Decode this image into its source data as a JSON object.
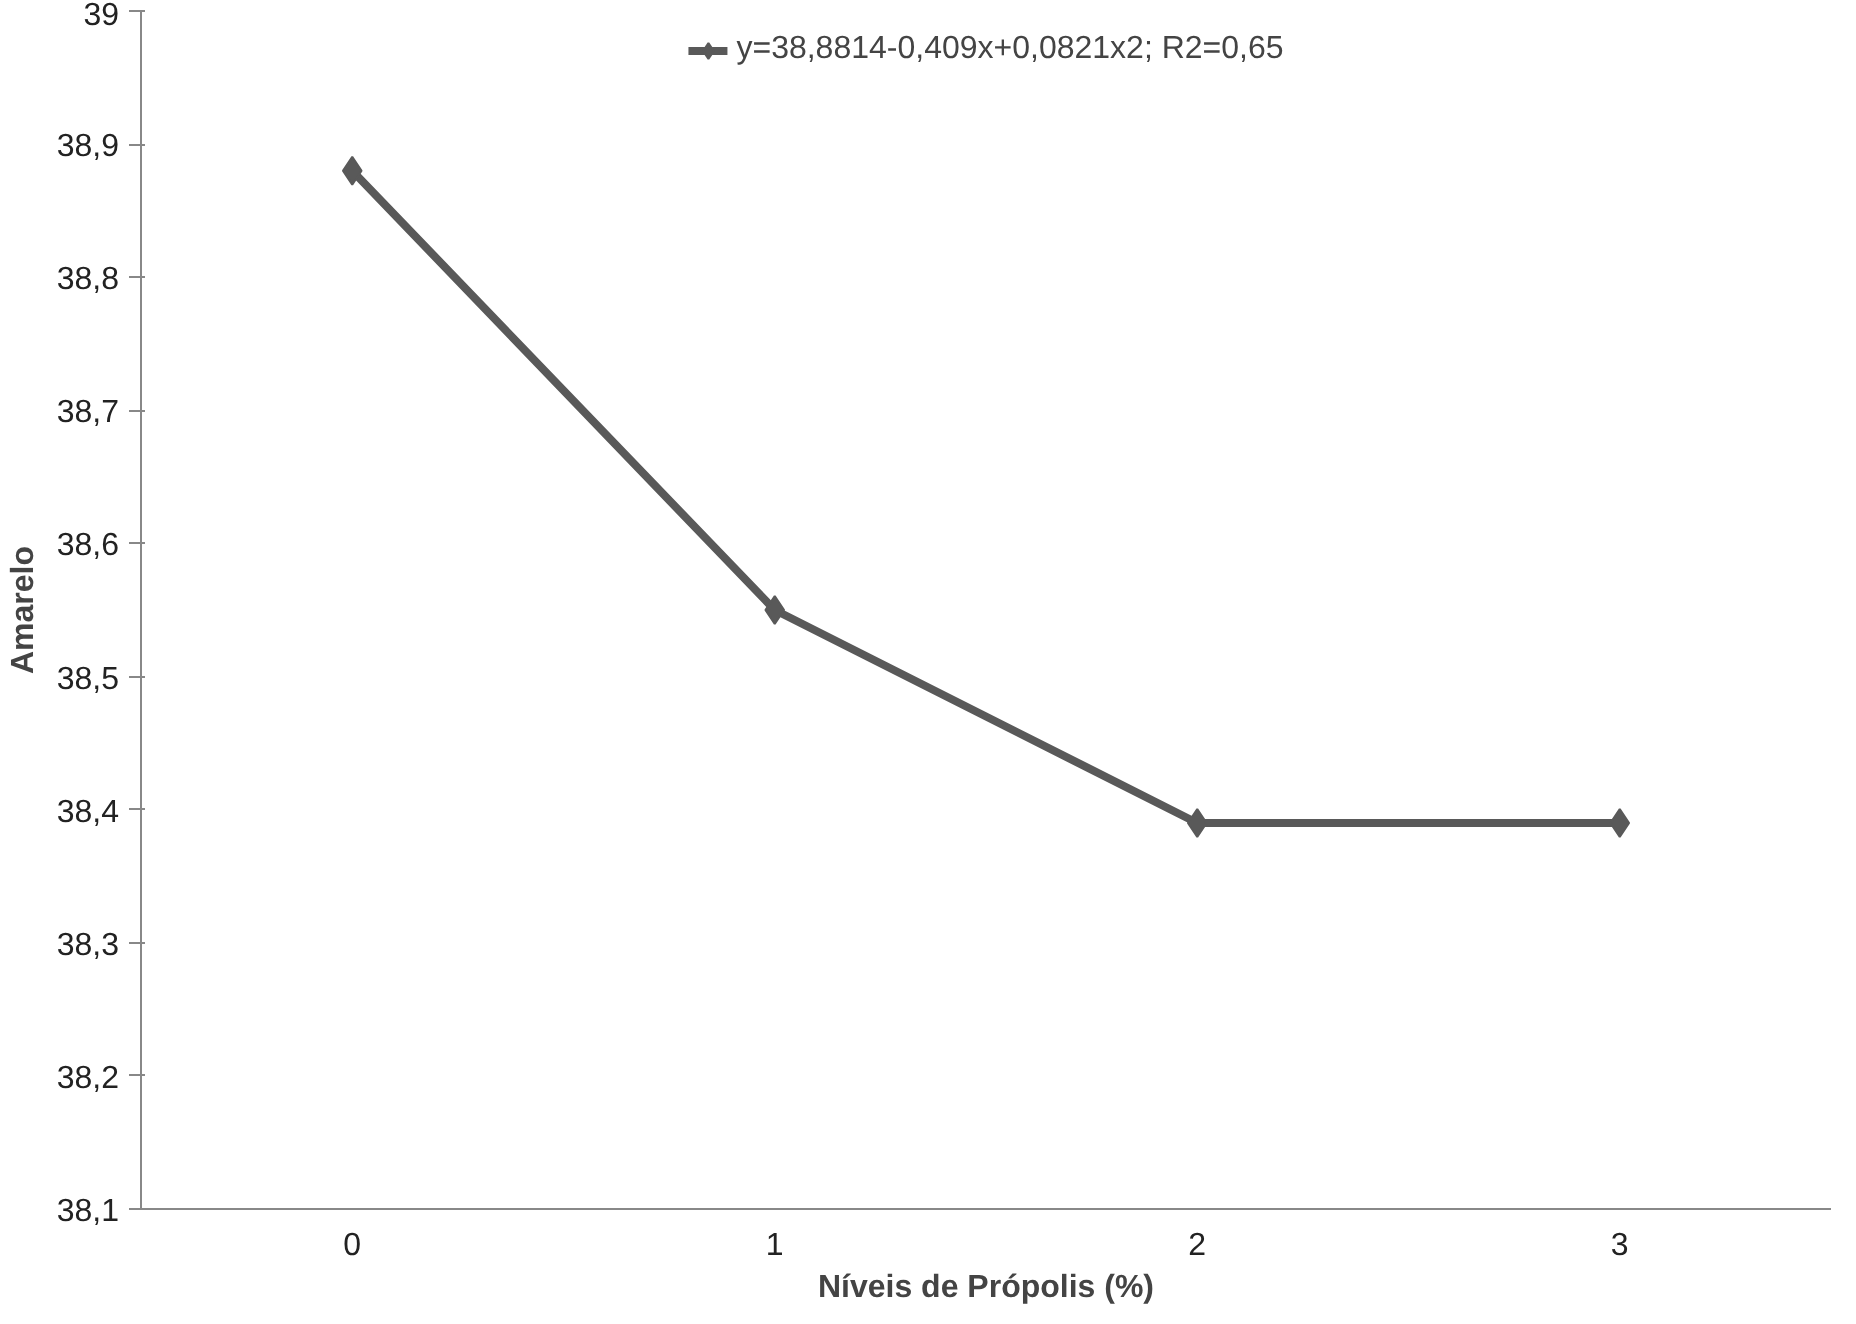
{
  "chart_data": {
    "type": "line",
    "xlabel": "Níveis de Própolis (%)",
    "ylabel": "Amarelo",
    "categories": [
      "0",
      "1",
      "2",
      "3"
    ],
    "series": [
      {
        "name": "y=38,8814-0,409x+0,0821x2; R2=0,65",
        "color": "#595959",
        "values": [
          38.88,
          38.55,
          38.39,
          38.39
        ]
      }
    ],
    "ylim": [
      38.1,
      39
    ],
    "yticks": [
      {
        "value": 38.1,
        "label": "38,1"
      },
      {
        "value": 38.2,
        "label": "38,2"
      },
      {
        "value": 38.3,
        "label": "38,3"
      },
      {
        "value": 38.4,
        "label": "38,4"
      },
      {
        "value": 38.5,
        "label": "38,5"
      },
      {
        "value": 38.6,
        "label": "38,6"
      },
      {
        "value": 38.7,
        "label": "38,7"
      },
      {
        "value": 38.8,
        "label": "38,8"
      },
      {
        "value": 38.9,
        "label": "38,9"
      },
      39
    ],
    "marker": "diamond",
    "line_style": "solid",
    "legend": "top",
    "grid": false
  }
}
